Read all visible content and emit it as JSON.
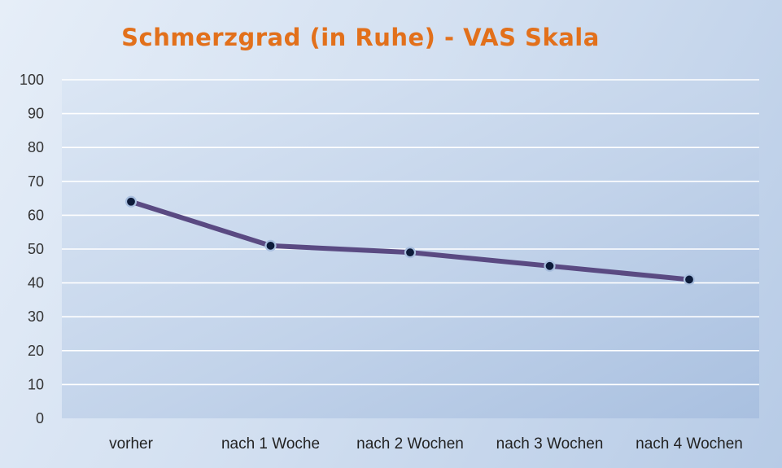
{
  "chart_data": {
    "type": "line",
    "title": "Schmerzgrad (in Ruhe) - VAS Skala",
    "xlabel": "",
    "ylabel": "",
    "categories": [
      "vorher",
      "nach 1 Woche",
      "nach 2 Wochen",
      "nach 3 Wochen",
      "nach 4 Wochen"
    ],
    "series": [
      {
        "values": [
          64,
          51,
          49,
          45,
          41
        ],
        "color": "#5a4a82"
      }
    ],
    "ylim": [
      0,
      100
    ],
    "yticks": [
      0,
      10,
      20,
      30,
      40,
      50,
      60,
      70,
      80,
      90,
      100
    ],
    "grid": true,
    "legend": "none",
    "colors": {
      "title": "#e2701b",
      "line": "#5a4a82",
      "marker": "#0d1b3a"
    }
  }
}
